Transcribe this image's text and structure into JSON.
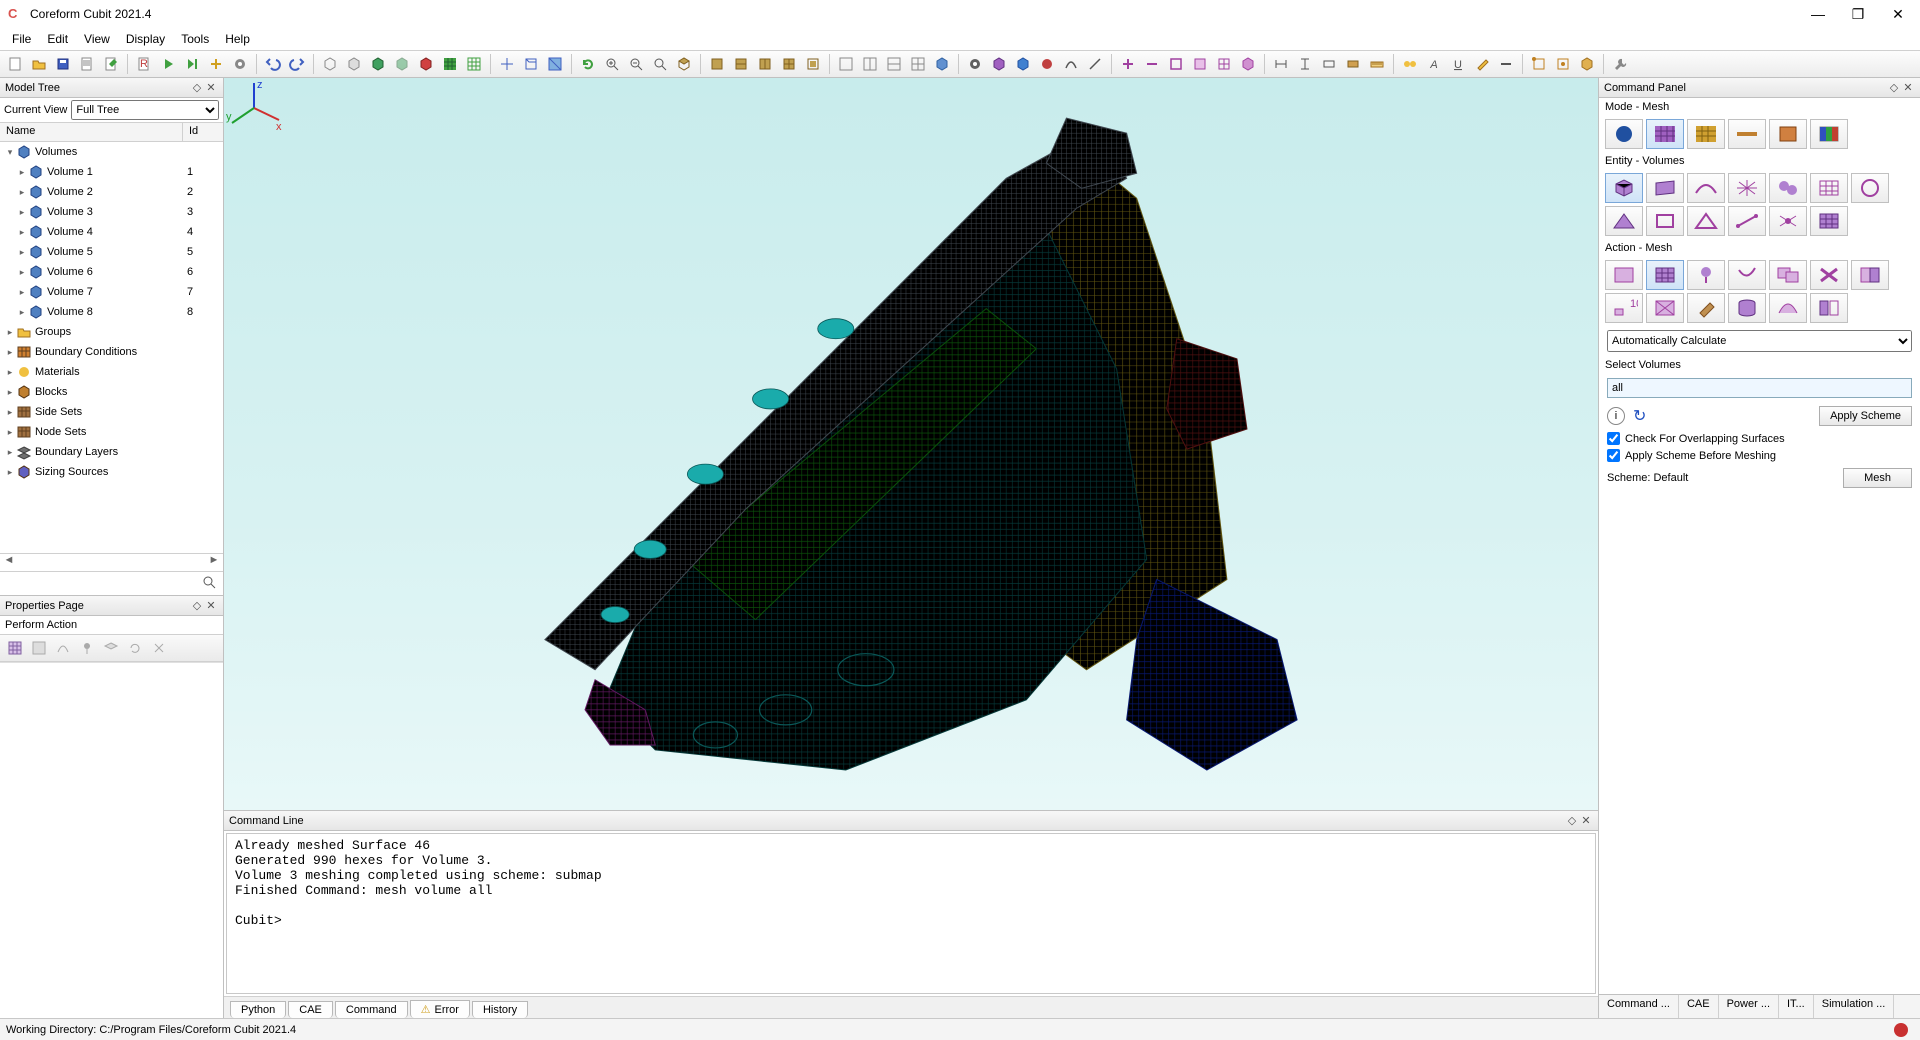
{
  "app": {
    "title": "Coreform Cubit 2021.4"
  },
  "menu": [
    "File",
    "Edit",
    "View",
    "Display",
    "Tools",
    "Help"
  ],
  "model_tree": {
    "title": "Model Tree",
    "current_view_label": "Current View",
    "current_view_value": "Full Tree",
    "cols": [
      "Name",
      "Id"
    ],
    "root": "Volumes",
    "volumes": [
      {
        "name": "Volume 1",
        "id": "1"
      },
      {
        "name": "Volume 2",
        "id": "2"
      },
      {
        "name": "Volume 3",
        "id": "3"
      },
      {
        "name": "Volume 4",
        "id": "4"
      },
      {
        "name": "Volume 5",
        "id": "5"
      },
      {
        "name": "Volume 6",
        "id": "6"
      },
      {
        "name": "Volume 7",
        "id": "7"
      },
      {
        "name": "Volume 8",
        "id": "8"
      }
    ],
    "others": [
      {
        "name": "Groups",
        "color": "#f0c040",
        "shape": "folder"
      },
      {
        "name": "Boundary Conditions",
        "color": "#d08030",
        "shape": "grid"
      },
      {
        "name": "Materials",
        "color": "#f0c040",
        "shape": "ball"
      },
      {
        "name": "Blocks",
        "color": "#c08030",
        "shape": "cube"
      },
      {
        "name": "Side Sets",
        "color": "#a07040",
        "shape": "grid"
      },
      {
        "name": "Node Sets",
        "color": "#a07040",
        "shape": "grid"
      },
      {
        "name": "Boundary Layers",
        "color": "#707070",
        "shape": "layers"
      },
      {
        "name": "Sizing Sources",
        "color": "#6060c0",
        "shape": "cube"
      }
    ]
  },
  "properties": {
    "title": "Properties Page",
    "action_label": "Perform Action"
  },
  "viewport": {
    "bg_top": "#c8ecec",
    "colors": {
      "teal": "#0f8f8f",
      "grey": "#808890",
      "green": "#18a018",
      "yellow": "#b8a820",
      "blue": "#1030c0",
      "red": "#902020",
      "magenta": "#b030b0",
      "mesh_line": "#052828"
    }
  },
  "commandline": {
    "title": "Command Line",
    "output": "Already meshed Surface 46\nGenerated 990 hexes for Volume 3.\nVolume 3 meshing completed using scheme: submap\nFinished Command: mesh volume all\n\nCubit>",
    "tabs": [
      "Python",
      "CAE",
      "Command",
      "Error",
      "History"
    ],
    "error_warn": true
  },
  "command_panel": {
    "title": "Command Panel",
    "mode_label": "Mode - Mesh",
    "entity_label": "Entity - Volumes",
    "action_label": "Action - Mesh",
    "calc_option": "Automatically Calculate",
    "select_label": "Select Volumes",
    "select_value": "all",
    "apply_scheme": "Apply Scheme",
    "check_overlap": "Check For Overlapping Surfaces",
    "apply_before": "Apply Scheme Before Meshing",
    "scheme_label": "Scheme: Default",
    "mesh_btn": "Mesh",
    "tabs": [
      "Command ...",
      "CAE",
      "Power ...",
      "IT...",
      "Simulation ..."
    ]
  },
  "statusbar": {
    "text": "Working Directory: C:/Program Files/Coreform Cubit 2021.4"
  }
}
